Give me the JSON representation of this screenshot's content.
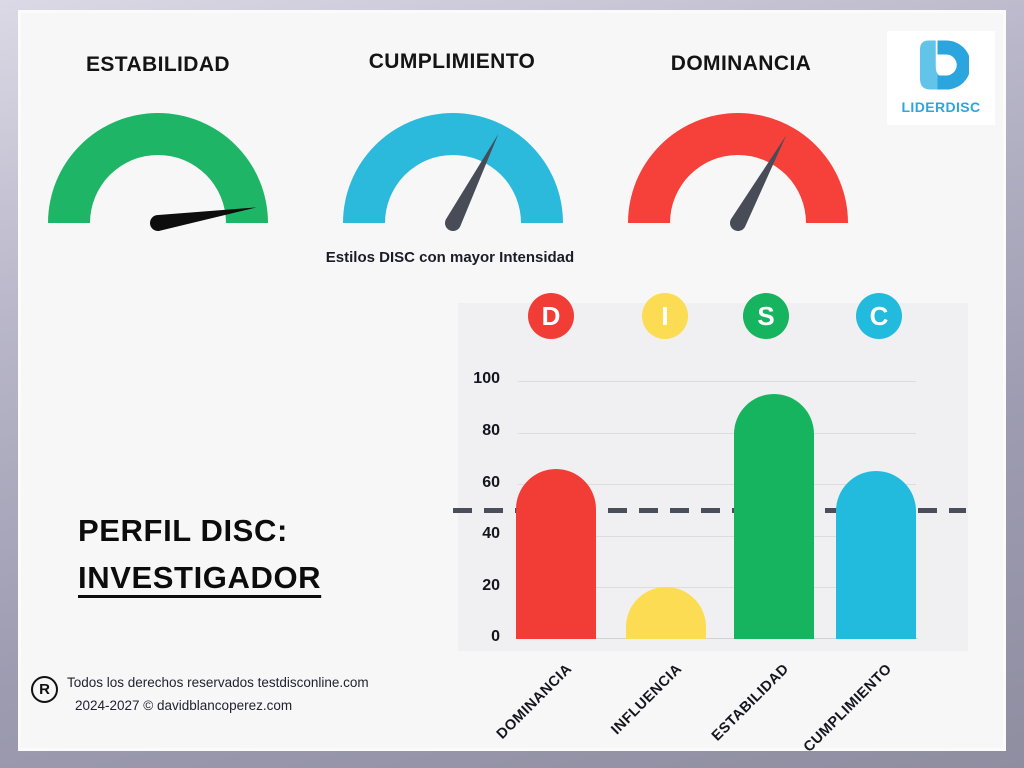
{
  "page": {
    "title_line1": "PERFIL DISC:",
    "title_line2": "INVESTIGADOR",
    "subtitle": "Estilos DISC con mayor Intensidad",
    "logo": {
      "text": "LIDERDISC"
    },
    "footer": {
      "registered_symbol": "R",
      "line1": "Todos los derechos reservados testdisconline.com",
      "line2": "2024-2027 © davidblancoperez.com"
    }
  },
  "gauges": [
    {
      "label": "ESTABILIDAD",
      "value": 95,
      "color": "#1fb566",
      "needle_color": "#0d0d0d"
    },
    {
      "label": "CUMPLIMIENTO",
      "value": 65,
      "color": "#2bb9dc",
      "needle_color": "#474c57"
    },
    {
      "label": "DOMINANCIA",
      "value": 66,
      "color": "#f6413b",
      "needle_color": "#474c57"
    }
  ],
  "chart_data": {
    "type": "bar",
    "title": "Estilos DISC con mayor Intensidad",
    "categories": [
      "DOMINANCIA",
      "INFLUENCIA",
      "ESTABILIDAD",
      "CUMPLIMIENTO"
    ],
    "values": [
      66,
      20,
      95,
      65
    ],
    "colors": [
      "#f23d36",
      "#fcdc52",
      "#16b45e",
      "#22bbde"
    ],
    "letters": [
      "D",
      "I",
      "S",
      "C"
    ],
    "yticks": [
      100,
      80,
      60,
      40,
      20,
      0
    ],
    "ylim": [
      0,
      100
    ],
    "threshold": 50,
    "grid": true,
    "xlabel": "",
    "ylabel": ""
  }
}
